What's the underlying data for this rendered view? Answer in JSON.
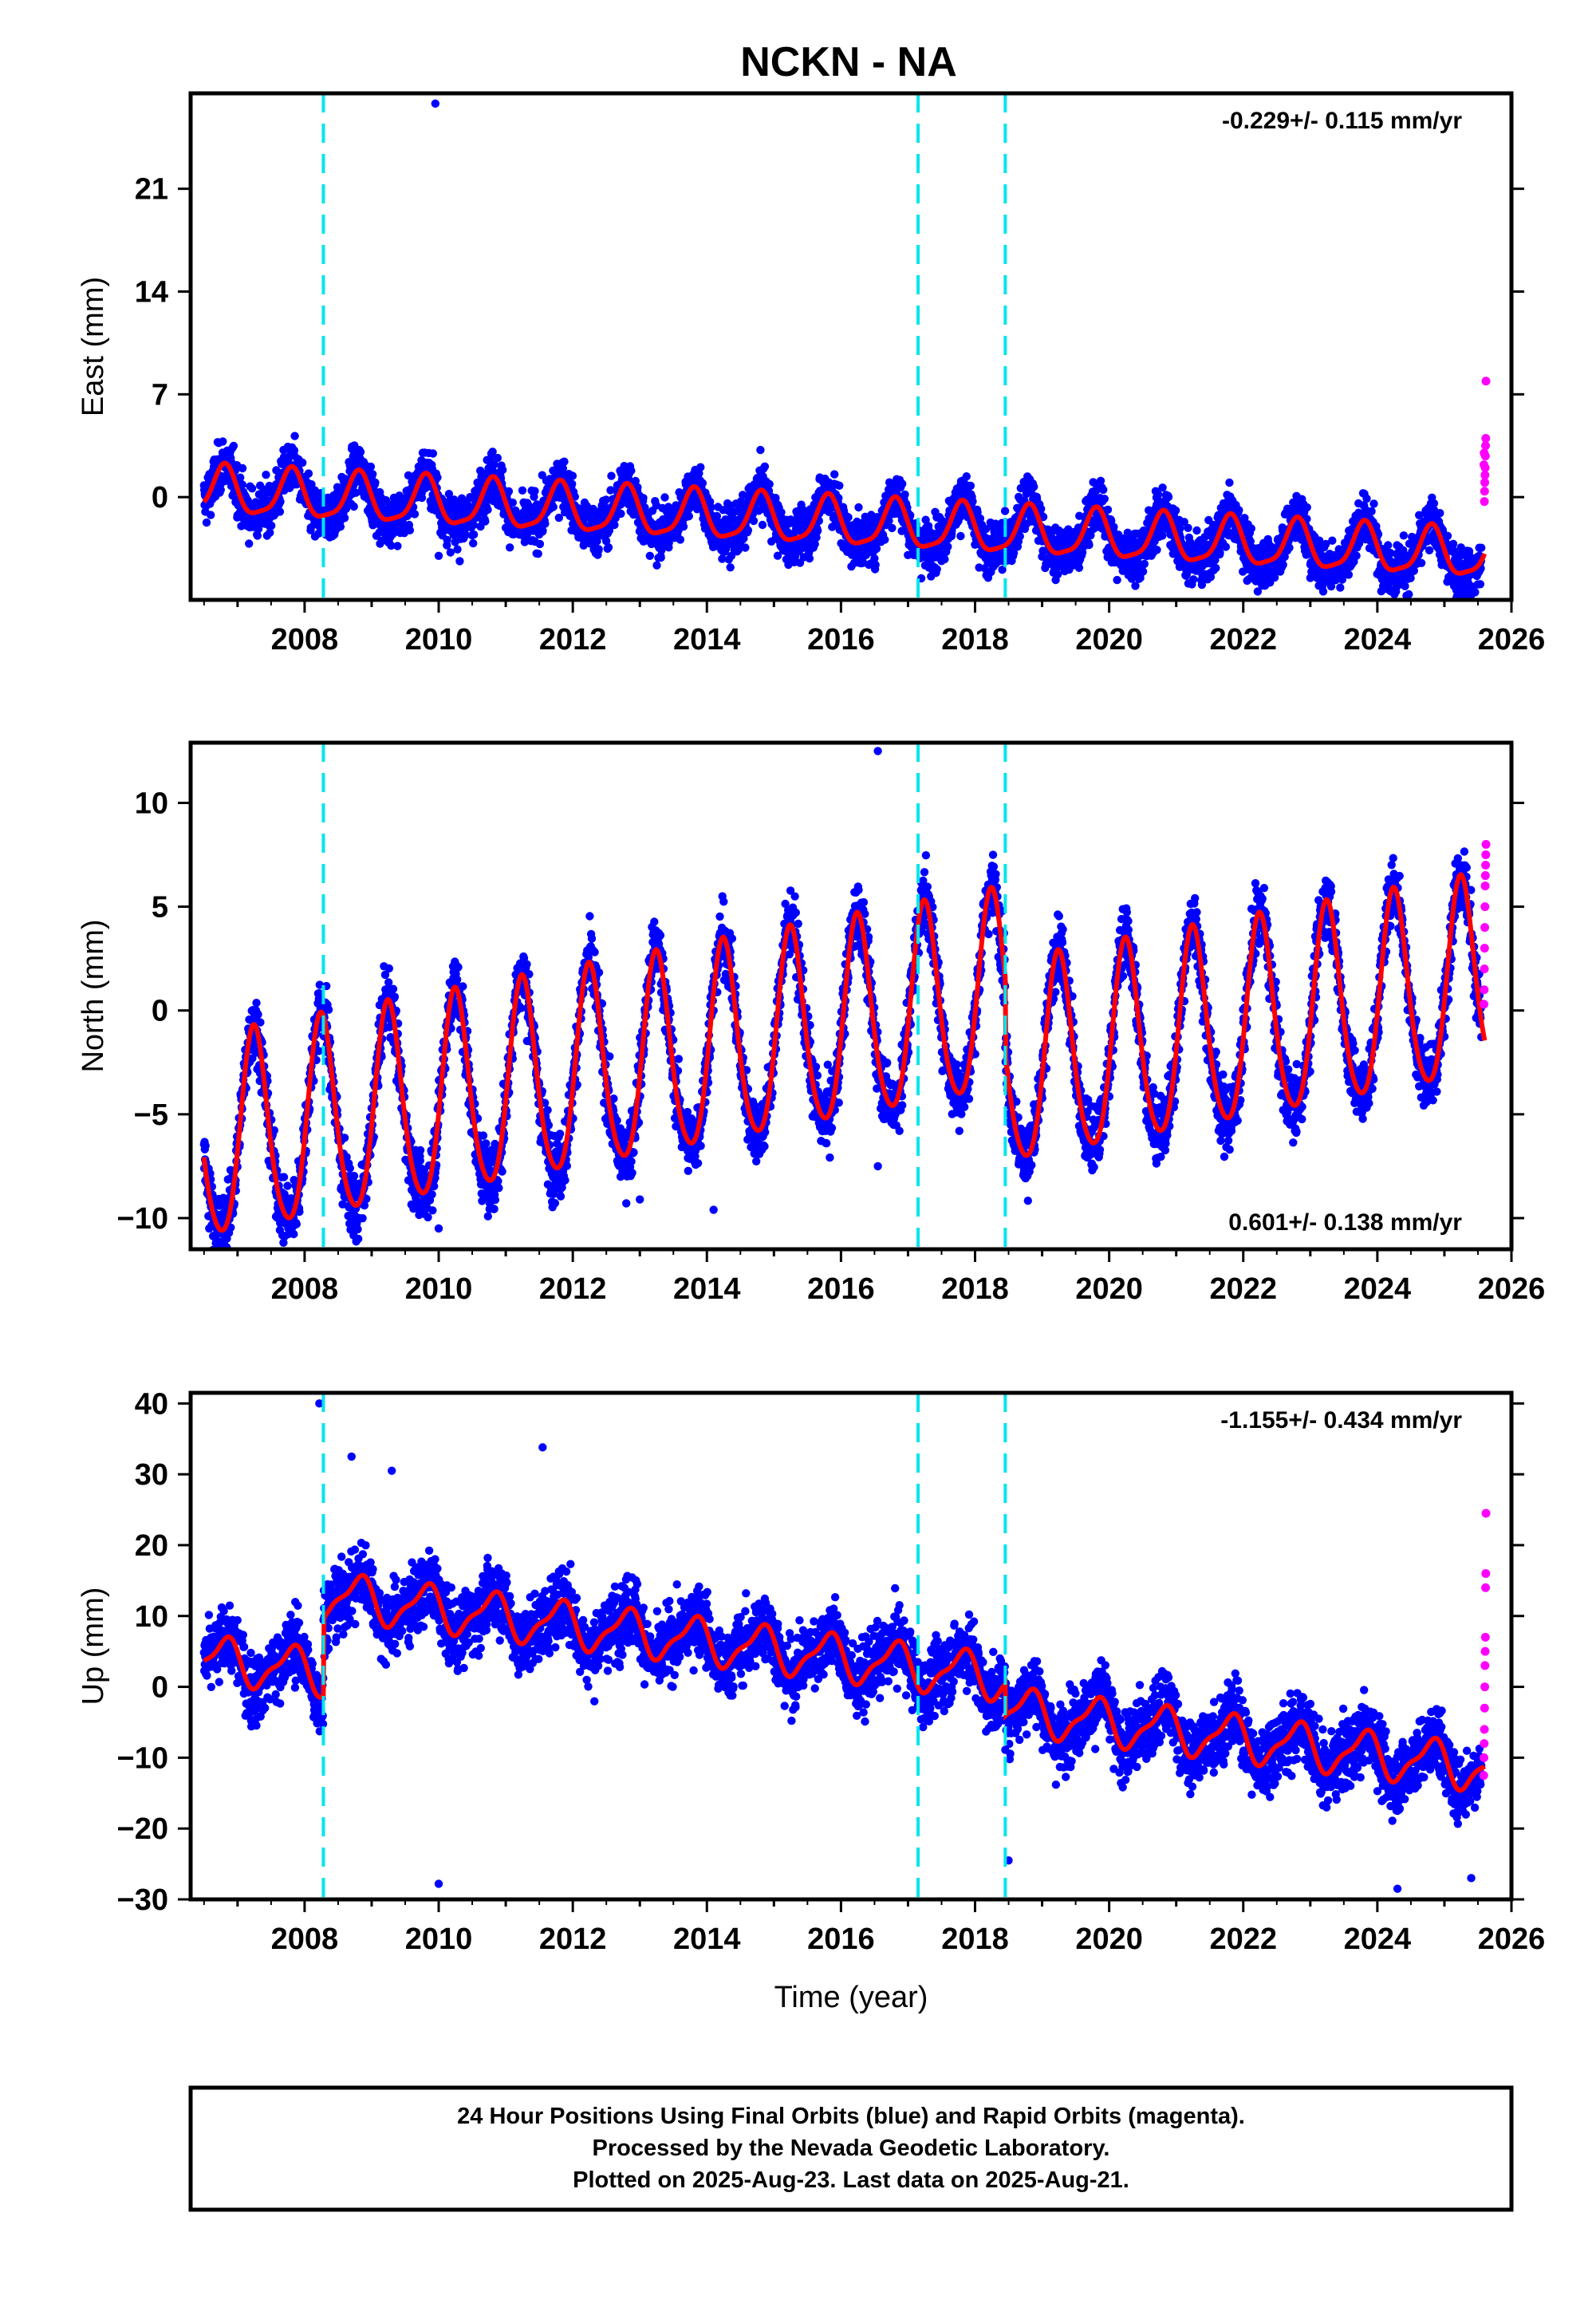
{
  "title": "NCKN - NA",
  "colors": {
    "final_orbits": "#0000ff",
    "rapid_orbits": "#ff00ff",
    "model_fit": "#ff0000",
    "offsets": "#00e5ee",
    "frame": "#000000"
  },
  "chart_data": [
    {
      "type": "scatter",
      "name": "east",
      "ylabel": "East (mm)",
      "xlabel": "",
      "xlim": [
        2006.3,
        2026.0
      ],
      "ylim": [
        -7,
        27.5
      ],
      "yticks": [
        0,
        7,
        14,
        21
      ],
      "xticks": [
        2008,
        2010,
        2012,
        2014,
        2016,
        2018,
        2020,
        2022,
        2024,
        2026
      ],
      "rate_label": "-0.229+/- 0.115 mm/yr",
      "rate_position": "top-right",
      "model": {
        "rate": -0.229,
        "intercept": 0.4,
        "annual_amp": 1.6,
        "annual_phase": 0.55,
        "semi_amp": 0.4,
        "semi_phase": 0.2,
        "noise": 1.2,
        "offset_steps": []
      },
      "outliers": [
        {
          "x": 2009.95,
          "y": 26.8
        },
        {
          "x": 2010.0,
          "y": -4.0
        },
        {
          "x": 2023.0,
          "y": -5.5
        }
      ],
      "rapid_points": [
        7.9,
        4.0,
        3.5,
        2.8,
        2.0,
        1.5,
        1.0,
        0.4,
        -0.3,
        3.0,
        2.2
      ]
    },
    {
      "type": "scatter",
      "name": "north",
      "ylabel": "North (mm)",
      "xlabel": "",
      "xlim": [
        2006.3,
        2026.0
      ],
      "ylim": [
        -11.5,
        12.9
      ],
      "yticks": [
        -10,
        -5,
        0,
        5,
        10
      ],
      "xticks": [
        2008,
        2010,
        2012,
        2014,
        2016,
        2018,
        2020,
        2022,
        2024,
        2026
      ],
      "rate_label": "0.601+/- 0.138 mm/yr",
      "rate_position": "bottom-right",
      "model": {
        "rate": 0.601,
        "intercept": -6.5,
        "annual_amp": 4.8,
        "annual_phase": 0.0,
        "semi_amp": 0.6,
        "semi_phase": 0.1,
        "noise": 1.1,
        "offset_steps": [
          {
            "x": 2018.45,
            "dy": -3.6
          }
        ]
      },
      "outliers": [
        {
          "x": 2016.55,
          "y": 12.5
        },
        {
          "x": 2013.0,
          "y": -9.1
        },
        {
          "x": 2014.1,
          "y": -9.6
        },
        {
          "x": 2008.8,
          "y": -11.0
        },
        {
          "x": 2010.0,
          "y": -10.5
        },
        {
          "x": 2016.55,
          "y": -7.5
        }
      ],
      "rapid_points": [
        8.0,
        7.5,
        7.0,
        6.5,
        6.0,
        5.0,
        4.0,
        3.0,
        2.0,
        1.0,
        0.3
      ]
    },
    {
      "type": "scatter",
      "name": "up",
      "ylabel": "Up (mm)",
      "xlabel": "Time (year)",
      "xlim": [
        2006.3,
        2026.0
      ],
      "ylim": [
        -30,
        41.5
      ],
      "yticks": [
        -30,
        -20,
        -10,
        0,
        10,
        20,
        30,
        40
      ],
      "xticks": [
        2008,
        2010,
        2012,
        2014,
        2016,
        2018,
        2020,
        2022,
        2024,
        2026
      ],
      "rate_label": "-1.155+/- 0.434 mm/yr",
      "rate_position": "top-right",
      "model": {
        "rate": -1.155,
        "intercept": 4.0,
        "annual_amp": 3.0,
        "annual_phase": 0.55,
        "semi_amp": 1.0,
        "semi_phase": 0.3,
        "noise": 3.4,
        "offset_steps": [
          {
            "x": 2008.28,
            "dy": 11.0
          },
          {
            "x": 2018.45,
            "dy": -4.5
          }
        ]
      },
      "outliers": [
        {
          "x": 2008.22,
          "y": 40.0
        },
        {
          "x": 2011.55,
          "y": 33.8
        },
        {
          "x": 2008.7,
          "y": 32.5
        },
        {
          "x": 2009.3,
          "y": 30.5
        },
        {
          "x": 2010.0,
          "y": -27.8
        },
        {
          "x": 2018.5,
          "y": -24.5
        },
        {
          "x": 2024.3,
          "y": -28.5
        },
        {
          "x": 2025.4,
          "y": -27.0
        }
      ],
      "rapid_points": [
        24.5,
        16.0,
        14.0,
        7.0,
        5.0,
        3.0,
        0.0,
        -3.0,
        -6.0,
        -8.0,
        -10.0,
        -12.5
      ]
    }
  ],
  "offsets": [
    2008.28,
    2017.15,
    2018.45
  ],
  "caption": {
    "line1": "24 Hour Positions Using Final Orbits (blue) and Rapid Orbits (magenta).",
    "line2": "Processed by the Nevada Geodetic Laboratory.",
    "line3": "Plotted on 2025-Aug-23. Last data on 2025-Aug-21."
  }
}
